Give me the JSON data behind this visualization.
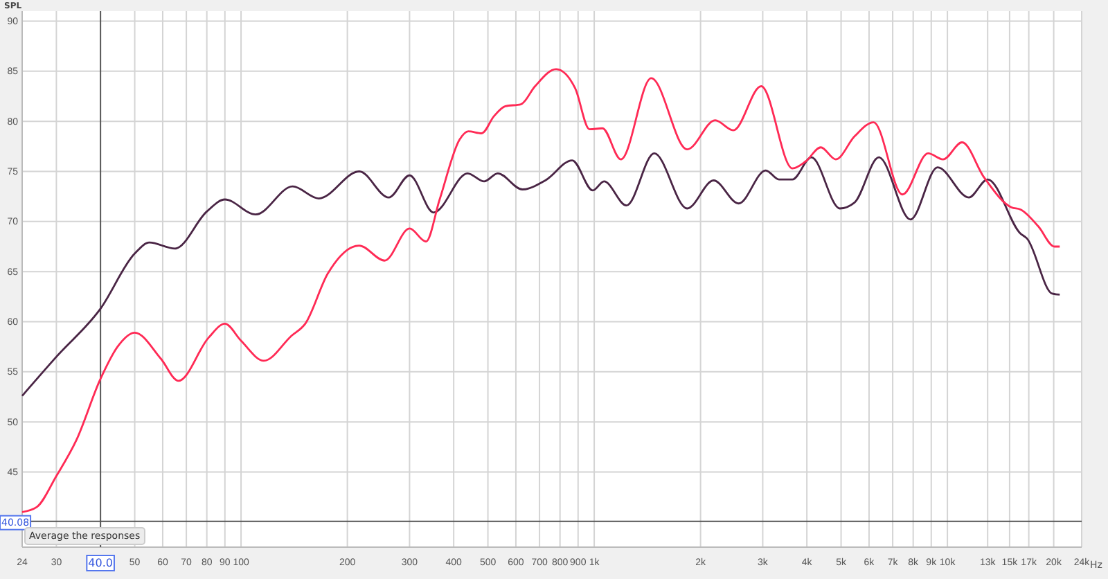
{
  "chart_data": {
    "type": "line",
    "ylabel": "SPL",
    "log": "x",
    "grid": true,
    "marker": "none",
    "line_style": "solid",
    "xlim": [
      24,
      24000
    ],
    "ylim": [
      37.5,
      91
    ],
    "xticks": [
      24,
      30,
      50,
      60,
      70,
      80,
      90,
      100,
      200,
      300,
      400,
      500,
      600,
      700,
      800,
      900,
      {
        "value": 1000,
        "label": "1k"
      },
      {
        "value": 2000,
        "label": "2k"
      },
      {
        "value": 3000,
        "label": "3k"
      },
      {
        "value": 4000,
        "label": "4k"
      },
      {
        "value": 5000,
        "label": "5k"
      },
      {
        "value": 6000,
        "label": "6k"
      },
      {
        "value": 7000,
        "label": "7k"
      },
      {
        "value": 8000,
        "label": "8k"
      },
      {
        "value": 9000,
        "label": "9k"
      },
      {
        "value": 10000,
        "label": "10k"
      },
      {
        "value": 13000,
        "label": "13k"
      },
      {
        "value": 15000,
        "label": "15k"
      },
      {
        "value": 17000,
        "label": "17k"
      },
      {
        "value": 20000,
        "label": "20k"
      },
      {
        "value": 24000,
        "label": "24k"
      }
    ],
    "xlabel": "Hz",
    "yticks": [
      45,
      50,
      55,
      60,
      65,
      70,
      75,
      80,
      85,
      90
    ],
    "ref_lines": [
      {
        "axis": "x",
        "value": 40,
        "label": "40.0",
        "color": "#555555"
      },
      {
        "axis": "y",
        "value": 40.08,
        "label": "40.08",
        "color": "#555555"
      }
    ],
    "annotations": [
      "Average the responses"
    ],
    "series": [
      {
        "color": "#4a2545",
        "x": [
          24,
          30,
          40,
          50,
          55,
          65,
          80,
          90,
          110,
          140,
          166,
          216,
          262,
          300,
          351,
          438,
          488,
          533,
          626,
          727,
          866,
          991,
          1066,
          1234,
          1479,
          1833,
          2178,
          2563,
          3059,
          3335,
          3640,
          4120,
          4960,
          5460,
          6400,
          7860,
          9380,
          11500,
          13000,
          16100,
          16800,
          19800,
          20800
        ],
        "values": [
          52.6,
          56.5,
          61.3,
          66.8,
          67.9,
          67.3,
          71,
          72.2,
          70.7,
          73.5,
          72.3,
          75,
          72.4,
          74.6,
          70.9,
          74.8,
          74,
          74.8,
          73.2,
          74.1,
          76.1,
          73.1,
          74,
          71.6,
          76.8,
          71.3,
          74.1,
          71.8,
          75.1,
          74.2,
          74.2,
          76.4,
          71.3,
          71.9,
          76.4,
          70.2,
          75.4,
          72.4,
          74.2,
          68.8,
          68.3,
          62.8,
          62.7
        ]
      },
      {
        "color": "#ff2a55",
        "x": [
          24,
          26.4,
          30,
          34.2,
          40,
          44.7,
          50,
          59.3,
          66.5,
          80.9,
          90,
          100,
          116,
          139,
          152,
          176,
          216,
          255,
          300,
          334,
          365,
          416,
          440,
          480,
          520,
          560,
          620,
          680,
          780,
          883,
          970,
          1055,
          1190,
          1450,
          1833,
          2200,
          2475,
          2970,
          3640,
          3970,
          4380,
          4830,
          5460,
          6180,
          7460,
          8820,
          9720,
          11000,
          12700,
          15200,
          16100,
          18100,
          20100,
          20800
        ],
        "values": [
          41,
          41.5,
          44.6,
          48.2,
          54.3,
          57.5,
          58.9,
          56.3,
          54.1,
          58.4,
          59.8,
          58.1,
          56.1,
          58.6,
          59.8,
          64.8,
          67.6,
          66.1,
          69.3,
          68,
          72.2,
          78.2,
          79,
          78.8,
          80.5,
          81.5,
          81.7,
          83.5,
          85.2,
          83.3,
          79.2,
          79.3,
          76.2,
          84.3,
          77.2,
          80.1,
          79.1,
          83.5,
          75.3,
          76,
          77.4,
          76.2,
          78.5,
          79.9,
          72.7,
          76.8,
          76.2,
          77.9,
          74.4,
          71.4,
          71.2,
          69.5,
          67.5,
          67.5
        ]
      }
    ]
  }
}
